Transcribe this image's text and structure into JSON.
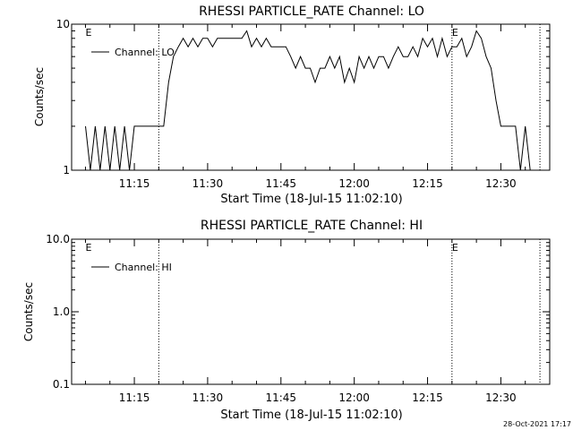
{
  "chart_data": [
    {
      "type": "line",
      "title": "RHESSI PARTICLE_RATE Channel: LO",
      "xlabel": "Start Time (18-Jul-15 11:02:10)",
      "ylabel": "Counts/sec",
      "yscale": "log",
      "ylim": [
        1,
        10
      ],
      "ytick_labels": [
        "10",
        "1"
      ],
      "xtick_labels": [
        "11:15",
        "11:30",
        "11:45",
        "12:00",
        "12:15",
        "12:30"
      ],
      "legend": "top-left",
      "series": [
        {
          "name": "Channel: LO",
          "x": [
            "11:05",
            "11:06",
            "11:07",
            "11:08",
            "11:09",
            "11:10",
            "11:11",
            "11:12",
            "11:13",
            "11:14",
            "11:15",
            "11:16",
            "11:17",
            "11:18",
            "11:19",
            "11:20",
            "11:21",
            "11:22",
            "11:23",
            "11:24",
            "11:25",
            "11:26",
            "11:27",
            "11:28",
            "11:29",
            "11:30",
            "11:31",
            "11:32",
            "11:33",
            "11:34",
            "11:35",
            "11:36",
            "11:37",
            "11:38",
            "11:39",
            "11:40",
            "11:41",
            "11:42",
            "11:43",
            "11:44",
            "11:45",
            "11:46",
            "11:47",
            "11:48",
            "11:49",
            "11:50",
            "11:51",
            "11:52",
            "11:53",
            "11:54",
            "11:55",
            "11:56",
            "11:57",
            "11:58",
            "11:59",
            "12:00",
            "12:01",
            "12:02",
            "12:03",
            "12:04",
            "12:05",
            "12:06",
            "12:07",
            "12:08",
            "12:09",
            "12:10",
            "12:11",
            "12:12",
            "12:13",
            "12:14",
            "12:15",
            "12:16",
            "12:17",
            "12:18",
            "12:19",
            "12:20",
            "12:21",
            "12:22",
            "12:23",
            "12:24",
            "12:25",
            "12:26",
            "12:27",
            "12:28",
            "12:29",
            "12:30",
            "12:31",
            "12:32",
            "12:33",
            "12:34",
            "12:35",
            "12:36"
          ],
          "y": [
            2,
            1,
            2,
            1,
            2,
            1,
            2,
            1,
            2,
            1,
            2,
            2,
            2,
            2,
            2,
            2,
            2,
            4,
            6,
            7,
            8,
            7,
            8,
            7,
            8,
            8,
            7,
            8,
            8,
            8,
            8,
            8,
            8,
            9,
            7,
            8,
            7,
            8,
            7,
            7,
            7,
            7,
            6,
            5,
            6,
            5,
            5,
            4,
            5,
            5,
            6,
            5,
            6,
            4,
            5,
            4,
            6,
            5,
            6,
            5,
            6,
            6,
            5,
            6,
            7,
            6,
            6,
            7,
            6,
            8,
            7,
            8,
            6,
            8,
            6,
            7,
            7,
            8,
            6,
            7,
            9,
            8,
            6,
            5,
            3,
            2,
            2,
            2,
            2,
            1,
            2,
            1
          ]
        }
      ],
      "markers": [
        {
          "label": "E",
          "x": "11:05"
        },
        {
          "label": "E",
          "x": "12:20"
        }
      ],
      "reference_lines": [
        "11:20",
        "12:20",
        "12:38"
      ]
    },
    {
      "type": "line",
      "title": "RHESSI PARTICLE_RATE Channel: HI",
      "xlabel": "Start Time (18-Jul-15 11:02:10)",
      "ylabel": "Counts/sec",
      "yscale": "log",
      "ylim": [
        0.1,
        10.0
      ],
      "ytick_labels": [
        "10.0",
        "1.0",
        "0.1"
      ],
      "xtick_labels": [
        "11:15",
        "11:30",
        "11:45",
        "12:00",
        "12:15",
        "12:30"
      ],
      "legend": "top-left",
      "series": [
        {
          "name": "Channel: HI",
          "x": [],
          "y": []
        }
      ],
      "markers": [
        {
          "label": "E",
          "x": "11:05"
        },
        {
          "label": "E",
          "x": "12:20"
        }
      ],
      "reference_lines": [
        "11:20",
        "12:20",
        "12:38"
      ]
    }
  ],
  "footer": {
    "timestamp": "28-Oct-2021 17:17"
  }
}
